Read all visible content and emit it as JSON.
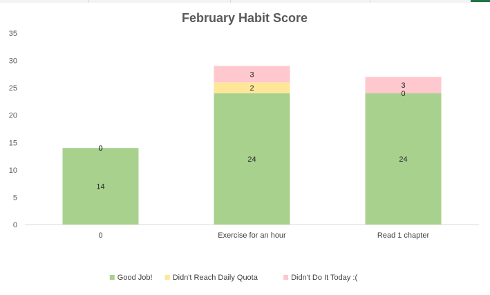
{
  "chart_data": {
    "type": "bar",
    "stacked": true,
    "title": "February Habit Score",
    "categories": [
      "0",
      "Exercise for an hour",
      "Read 1 chapter"
    ],
    "series": [
      {
        "name": "Good Job!",
        "color": "#a9d18e",
        "values": [
          14,
          24,
          24
        ]
      },
      {
        "name": "Didn't Reach Daily Quota",
        "color": "#ffe699",
        "values": [
          0,
          2,
          0
        ]
      },
      {
        "name": "Didn't Do It Today :(",
        "color": "#ffc7ce",
        "values": [
          0,
          3,
          3
        ]
      }
    ],
    "ylim": [
      0,
      35
    ],
    "yticks": [
      0,
      5,
      10,
      15,
      20,
      25,
      30,
      35
    ],
    "legend_position": "bottom",
    "grid": false
  }
}
